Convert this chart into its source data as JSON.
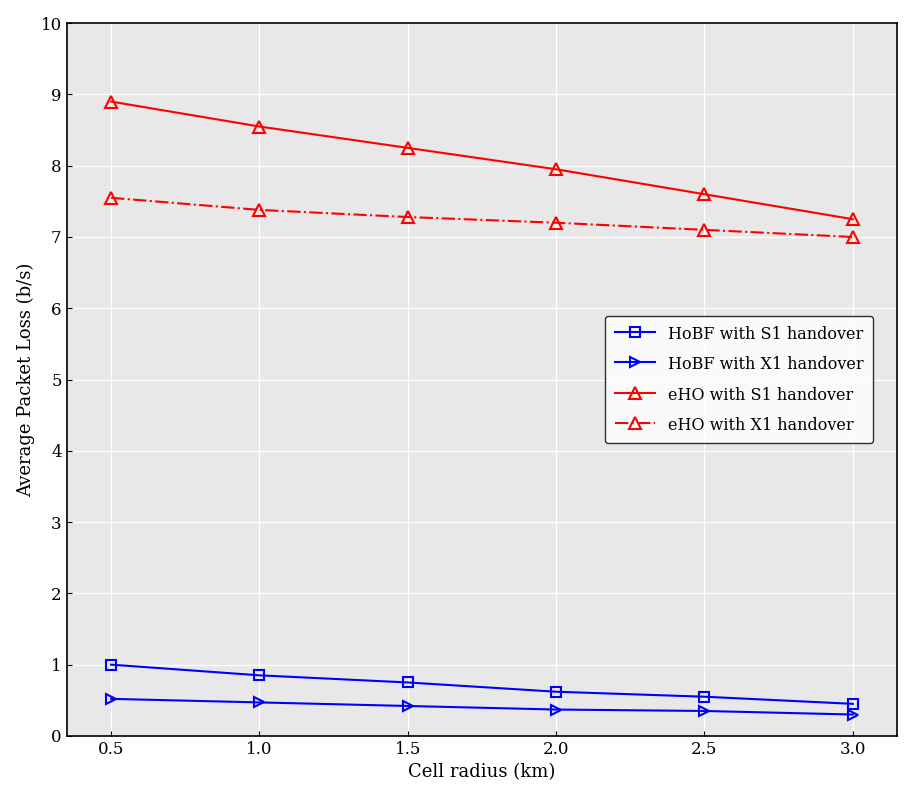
{
  "x": [
    0.5,
    1.0,
    1.5,
    2.0,
    2.5,
    3.0
  ],
  "hobf_s1": [
    1.0,
    0.85,
    0.75,
    0.62,
    0.55,
    0.45
  ],
  "hobf_x1": [
    0.52,
    0.47,
    0.42,
    0.37,
    0.35,
    0.3
  ],
  "eho_s1": [
    8.9,
    8.55,
    8.25,
    7.95,
    7.6,
    7.25
  ],
  "eho_x1": [
    7.55,
    7.38,
    7.28,
    7.2,
    7.1,
    7.0
  ],
  "blue_color": "#0000FF",
  "red_color": "#FF0000",
  "xlabel": "Cell radius (km)",
  "ylabel": "Average Packet Loss (b/s)",
  "xlim": [
    0.35,
    3.15
  ],
  "ylim": [
    0,
    10
  ],
  "yticks": [
    0,
    1,
    2,
    3,
    4,
    5,
    6,
    7,
    8,
    9,
    10
  ],
  "xticks": [
    0.5,
    1.0,
    1.5,
    2.0,
    2.5,
    3.0
  ],
  "legend_labels": [
    "HoBF with S1 handover",
    "HoBF with X1 handover",
    "eHO with S1 handover",
    "eHO with X1 handover"
  ],
  "ax_facecolor": "#e8e8e8",
  "grid_color": "#ffffff",
  "fig_facecolor": "#ffffff"
}
